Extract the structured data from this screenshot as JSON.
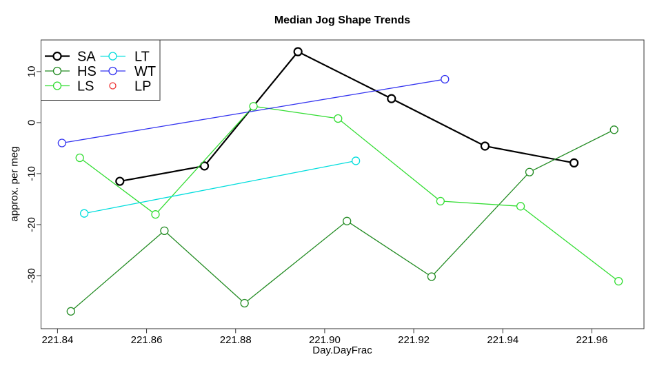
{
  "chart_data": {
    "type": "line",
    "title": "Median Jog Shape Trends",
    "xlabel": "Day.DayFrac",
    "ylabel": "approx. per meg",
    "xlim": [
      221.8363,
      221.9717
    ],
    "ylim": [
      -40.4,
      16.2
    ],
    "x_ticks": [
      221.84,
      221.86,
      221.88,
      221.9,
      221.92,
      221.94,
      221.96
    ],
    "x_tick_labels": [
      "221.84",
      "221.86",
      "221.88",
      "221.90",
      "221.92",
      "221.94",
      "221.96"
    ],
    "y_ticks": [
      10,
      0,
      -10,
      -20,
      -30
    ],
    "y_tick_labels": [
      "10",
      "0",
      "-10",
      "-20",
      "-30"
    ],
    "grid": false,
    "legend_position": "topleft",
    "legend_columns": [
      [
        "SA",
        "HS",
        "LS"
      ],
      [
        "LT",
        "WT",
        "LP"
      ]
    ],
    "series": [
      {
        "name": "SA",
        "color": "#000000",
        "line_width": 2.2,
        "marker": "open-circle",
        "points": [
          [
            221.854,
            -11.5
          ],
          [
            221.873,
            -8.5
          ],
          [
            221.894,
            13.9
          ],
          [
            221.915,
            4.7
          ],
          [
            221.936,
            -4.6
          ],
          [
            221.956,
            -7.9
          ]
        ]
      },
      {
        "name": "HS",
        "color": "#228B22",
        "line_width": 1.3,
        "marker": "open-circle",
        "points": [
          [
            221.843,
            -37.0
          ],
          [
            221.864,
            -21.2
          ],
          [
            221.882,
            -35.4
          ],
          [
            221.905,
            -19.3
          ],
          [
            221.924,
            -30.2
          ],
          [
            221.946,
            -9.7
          ],
          [
            221.965,
            -1.4
          ]
        ]
      },
      {
        "name": "LS",
        "color": "#33DD33",
        "line_width": 1.3,
        "marker": "open-circle",
        "points": [
          [
            221.845,
            -6.9
          ],
          [
            221.862,
            -18.0
          ],
          [
            221.884,
            3.2
          ],
          [
            221.903,
            0.8
          ],
          [
            221.926,
            -15.4
          ],
          [
            221.944,
            -16.4
          ],
          [
            221.966,
            -31.1
          ]
        ]
      },
      {
        "name": "LT",
        "color": "#00DDDD",
        "line_width": 1.3,
        "marker": "open-circle",
        "points": [
          [
            221.846,
            -17.8
          ],
          [
            221.907,
            -7.5
          ]
        ]
      },
      {
        "name": "WT",
        "color": "#3333F0",
        "line_width": 1.3,
        "marker": "open-circle",
        "points": [
          [
            221.841,
            -4.0
          ],
          [
            221.927,
            8.5
          ]
        ]
      },
      {
        "name": "LP",
        "color": "#EE3333",
        "line_width": 1.3,
        "marker": "open-circle",
        "points": []
      }
    ]
  }
}
